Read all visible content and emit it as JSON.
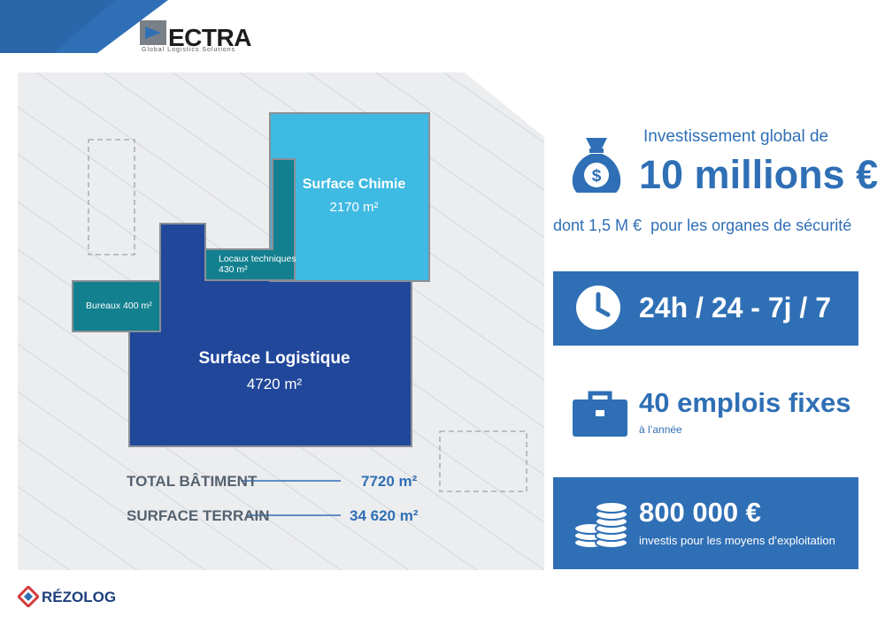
{
  "brand": {
    "name": "ECTRA",
    "tagline": "Global Logistics Solutions",
    "footer": "RÉZOLOG"
  },
  "plan": {
    "chimie": {
      "name": "Surface Chimie",
      "area": "2170 m²"
    },
    "locaux": {
      "name": "Locaux techniques",
      "area": "430 m²"
    },
    "bureaux": {
      "label": "Bureaux 400 m²"
    },
    "logistique": {
      "name": "Surface Logistique",
      "area": "4720 m²"
    }
  },
  "totals": [
    {
      "label": "TOTAL BÂTIMENT",
      "value": "7720 m²"
    },
    {
      "label": "SURFACE TERRAIN",
      "value": "34 620 m²"
    }
  ],
  "investment": {
    "intro": "Investissement global de",
    "amount": "10 millions €",
    "detail": "dont 1,5 M €  pour les organes de sécurité"
  },
  "hours": {
    "text": "24h / 24 - 7j / 7"
  },
  "jobs": {
    "title": "40 emplois fixes",
    "sub": "à l’année"
  },
  "ops": {
    "amount": "800 000 €",
    "sub": "investis pour les moyens d’exploitation"
  },
  "colors": {
    "blue": "#2f6fb5",
    "navy": "#21479a",
    "teal": "#12808f",
    "cyan": "#3fbae2",
    "ground": "#ecedef"
  }
}
